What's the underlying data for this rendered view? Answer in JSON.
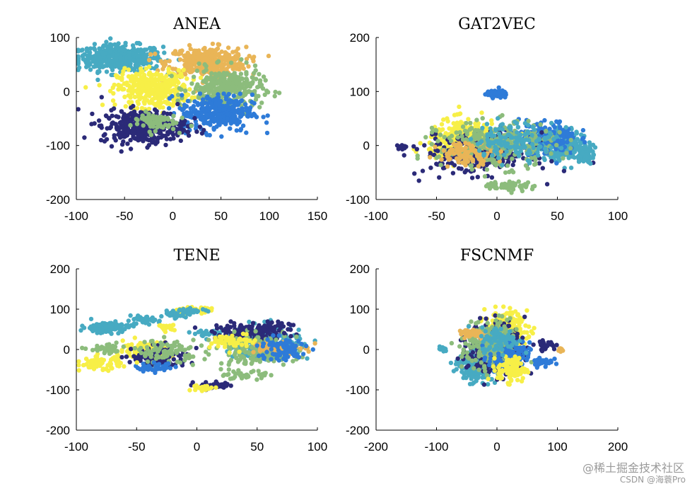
{
  "colors": {
    "navy": "#2b2a78",
    "blue": "#2e7bd8",
    "teal": "#47aac2",
    "green": "#8cbc7c",
    "orange": "#e9b557",
    "yellow": "#f7ef47"
  },
  "chart_data": [
    {
      "type": "scatter",
      "title": "ANEA",
      "xlim": [
        -100,
        150
      ],
      "ylim": [
        -200,
        100
      ],
      "xticks": [
        "-100",
        "-50",
        "0",
        "50",
        "100",
        "150"
      ],
      "yticks": [
        "100",
        "0",
        "-100",
        "-200"
      ],
      "xtick_values": [
        -100,
        -50,
        0,
        50,
        100,
        150
      ],
      "ytick_values": [
        100,
        0,
        -100,
        -200
      ],
      "clusters": [
        {
          "color": "teal",
          "cx": -55,
          "cy": 62,
          "sx": 26,
          "sy": 14,
          "n": 420
        },
        {
          "color": "orange",
          "cx": 35,
          "cy": 55,
          "sx": 24,
          "sy": 16,
          "n": 360
        },
        {
          "color": "yellow",
          "cx": -20,
          "cy": 5,
          "sx": 22,
          "sy": 20,
          "n": 380
        },
        {
          "color": "green",
          "cx": 55,
          "cy": 5,
          "sx": 22,
          "sy": 22,
          "n": 320
        },
        {
          "color": "blue",
          "cx": 45,
          "cy": -40,
          "sx": 22,
          "sy": 20,
          "n": 320
        },
        {
          "color": "navy",
          "cx": -30,
          "cy": -65,
          "sx": 26,
          "sy": 18,
          "n": 380
        },
        {
          "color": "green",
          "cx": -20,
          "cy": -55,
          "sx": 14,
          "sy": 10,
          "n": 70
        }
      ]
    },
    {
      "type": "scatter",
      "title": "GAT2VEC",
      "xlim": [
        -100,
        100
      ],
      "ylim": [
        -100,
        200
      ],
      "xticks": [
        "-100",
        "-50",
        "0",
        "50",
        "100"
      ],
      "yticks": [
        "200",
        "100",
        "0",
        "-100"
      ],
      "xtick_values": [
        -100,
        -50,
        0,
        50,
        100
      ],
      "ytick_values": [
        200,
        100,
        0,
        -100
      ],
      "clusters": [
        {
          "color": "blue",
          "cx": 0,
          "cy": 95,
          "sx": 5,
          "sy": 4,
          "n": 70
        },
        {
          "color": "teal",
          "cx": 55,
          "cy": 0,
          "sx": 12,
          "sy": 16,
          "n": 240
        },
        {
          "color": "blue",
          "cx": 42,
          "cy": 15,
          "sx": 14,
          "sy": 18,
          "n": 160
        },
        {
          "color": "yellow",
          "cx": -25,
          "cy": 10,
          "sx": 18,
          "sy": 22,
          "n": 320
        },
        {
          "color": "navy",
          "cx": -15,
          "cy": -15,
          "sx": 26,
          "sy": 22,
          "n": 280
        },
        {
          "color": "green",
          "cx": 0,
          "cy": 0,
          "sx": 28,
          "sy": 24,
          "n": 300
        },
        {
          "color": "orange",
          "cx": -25,
          "cy": -15,
          "sx": 14,
          "sy": 12,
          "n": 100
        },
        {
          "color": "teal",
          "cx": 15,
          "cy": 10,
          "sx": 20,
          "sy": 20,
          "n": 140
        },
        {
          "color": "green",
          "cx": 10,
          "cy": -75,
          "sx": 12,
          "sy": 5,
          "n": 60
        },
        {
          "color": "teal",
          "cx": 72,
          "cy": -15,
          "sx": 4,
          "sy": 10,
          "n": 60
        },
        {
          "color": "navy",
          "cx": -80,
          "cy": -3,
          "sx": 3,
          "sy": 3,
          "n": 10
        }
      ]
    },
    {
      "type": "scatter",
      "title": "TENE",
      "xlim": [
        -100,
        100
      ],
      "ylim": [
        -200,
        200
      ],
      "xticks": [
        "-100",
        "-50",
        "0",
        "50",
        "100"
      ],
      "yticks": [
        "200",
        "100",
        "0",
        "-100",
        "-200"
      ],
      "xtick_values": [
        -100,
        -50,
        0,
        50,
        100
      ],
      "ytick_values": [
        200,
        100,
        0,
        -100,
        -200
      ],
      "clusters": [
        {
          "color": "teal",
          "cx": -75,
          "cy": 55,
          "sx": 12,
          "sy": 8,
          "n": 110
        },
        {
          "color": "teal",
          "cx": -45,
          "cy": 72,
          "sx": 8,
          "sy": 5,
          "n": 40
        },
        {
          "color": "teal",
          "cx": -20,
          "cy": 85,
          "sx": 6,
          "sy": 5,
          "n": 30
        },
        {
          "color": "yellow",
          "cx": -5,
          "cy": 98,
          "sx": 10,
          "sy": 4,
          "n": 45
        },
        {
          "color": "teal",
          "cx": -5,
          "cy": 95,
          "sx": 8,
          "sy": 4,
          "n": 35
        },
        {
          "color": "yellow",
          "cx": -25,
          "cy": 55,
          "sx": 4,
          "sy": 4,
          "n": 20
        },
        {
          "color": "teal",
          "cx": 10,
          "cy": 40,
          "sx": 8,
          "sy": 4,
          "n": 30
        },
        {
          "color": "yellow",
          "cx": -40,
          "cy": 0,
          "sx": 12,
          "sy": 12,
          "n": 150
        },
        {
          "color": "navy",
          "cx": -30,
          "cy": -20,
          "sx": 14,
          "sy": 16,
          "n": 120
        },
        {
          "color": "green",
          "cx": -25,
          "cy": -5,
          "sx": 14,
          "sy": 16,
          "n": 90
        },
        {
          "color": "blue",
          "cx": -35,
          "cy": -45,
          "sx": 10,
          "sy": 6,
          "n": 40
        },
        {
          "color": "yellow",
          "cx": -80,
          "cy": -35,
          "sx": 10,
          "sy": 10,
          "n": 70
        },
        {
          "color": "green",
          "cx": -75,
          "cy": 0,
          "sx": 8,
          "sy": 6,
          "n": 45
        },
        {
          "color": "navy",
          "cx": 15,
          "cy": -90,
          "sx": 10,
          "sy": 6,
          "n": 40
        },
        {
          "color": "yellow",
          "cx": 5,
          "cy": -95,
          "sx": 6,
          "sy": 4,
          "n": 20
        },
        {
          "color": "teal",
          "cx": 55,
          "cy": 20,
          "sx": 18,
          "sy": 24,
          "n": 220
        },
        {
          "color": "navy",
          "cx": 45,
          "cy": 40,
          "sx": 18,
          "sy": 14,
          "n": 150
        },
        {
          "color": "green",
          "cx": 50,
          "cy": 0,
          "sx": 20,
          "sy": 22,
          "n": 170
        },
        {
          "color": "orange",
          "cx": 65,
          "cy": 5,
          "sx": 12,
          "sy": 10,
          "n": 70
        },
        {
          "color": "blue",
          "cx": 70,
          "cy": 0,
          "sx": 12,
          "sy": 18,
          "n": 90
        },
        {
          "color": "yellow",
          "cx": 30,
          "cy": 20,
          "sx": 10,
          "sy": 12,
          "n": 60
        },
        {
          "color": "green",
          "cx": 40,
          "cy": -65,
          "sx": 10,
          "sy": 6,
          "n": 40
        },
        {
          "color": "navy",
          "cx": 60,
          "cy": 55,
          "sx": 10,
          "sy": 6,
          "n": 40
        }
      ]
    },
    {
      "type": "scatter",
      "title": "FSCNMF",
      "xlim": [
        -200,
        200
      ],
      "ylim": [
        -200,
        200
      ],
      "xticks": [
        "-200",
        "-100",
        "0",
        "100",
        "200"
      ],
      "yticks": [
        "200",
        "100",
        "0",
        "-100",
        "-200"
      ],
      "xtick_values": [
        -200,
        -100,
        0,
        100,
        200
      ],
      "ytick_values": [
        200,
        100,
        0,
        -100,
        -200
      ],
      "clusters": [
        {
          "color": "teal",
          "cx": -35,
          "cy": -40,
          "sx": 16,
          "sy": 22,
          "n": 240
        },
        {
          "color": "yellow",
          "cx": 15,
          "cy": 45,
          "sx": 20,
          "sy": 28,
          "n": 260
        },
        {
          "color": "navy",
          "cx": 0,
          "cy": 0,
          "sx": 28,
          "sy": 40,
          "n": 260
        },
        {
          "color": "green",
          "cx": -10,
          "cy": 10,
          "sx": 26,
          "sy": 36,
          "n": 240
        },
        {
          "color": "blue",
          "cx": 20,
          "cy": -20,
          "sx": 20,
          "sy": 22,
          "n": 100
        },
        {
          "color": "yellow",
          "cx": 25,
          "cy": -50,
          "sx": 14,
          "sy": 18,
          "n": 110
        },
        {
          "color": "orange",
          "cx": -40,
          "cy": 40,
          "sx": 14,
          "sy": 8,
          "n": 50
        },
        {
          "color": "teal",
          "cx": 5,
          "cy": 25,
          "sx": 18,
          "sy": 18,
          "n": 90
        },
        {
          "color": "blue",
          "cx": 75,
          "cy": -30,
          "sx": 10,
          "sy": 8,
          "n": 35
        },
        {
          "color": "navy",
          "cx": 80,
          "cy": 10,
          "sx": 10,
          "sy": 6,
          "n": 30
        },
        {
          "color": "orange",
          "cx": 105,
          "cy": 0,
          "sx": 3,
          "sy": 4,
          "n": 10
        },
        {
          "color": "teal",
          "cx": -90,
          "cy": 0,
          "sx": 4,
          "sy": 4,
          "n": 10
        }
      ]
    }
  ],
  "watermark": {
    "line1": "@稀土掘金技术社区",
    "line2": "CSDN @海蓑Pro"
  }
}
